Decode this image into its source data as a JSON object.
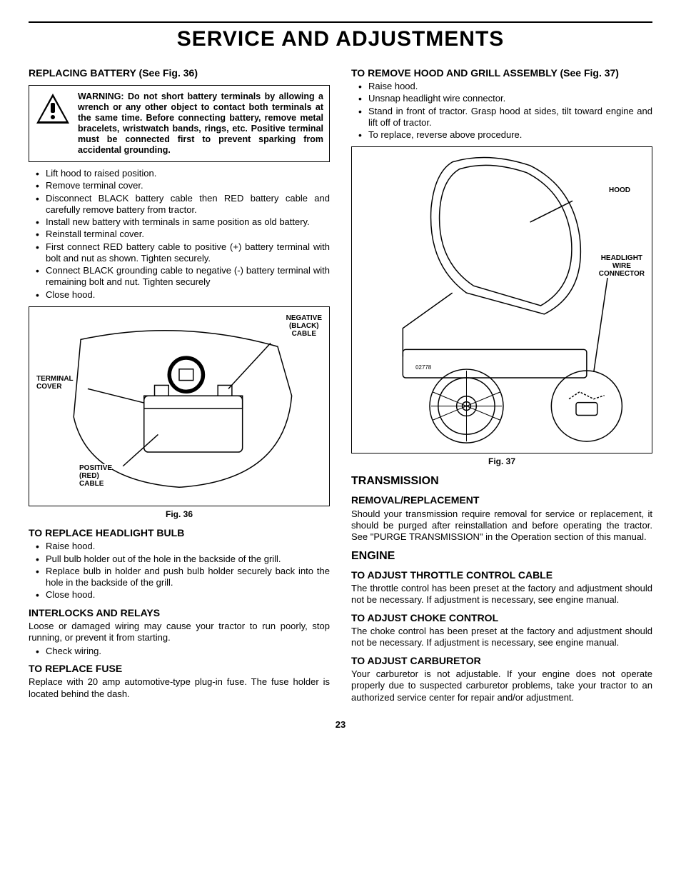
{
  "page_title": "SERVICE AND ADJUSTMENTS",
  "page_number": "23",
  "left": {
    "replacing_battery": {
      "heading": "REPLACING BATTERY (See Fig. 36)",
      "warning": "WARNING:  Do not short battery terminals by allowing a wrench or any other object to contact both terminals at the same time. Before connecting battery, remove metal bracelets, wristwatch bands, rings, etc.  Positive terminal must be connected first to prevent sparking from accidental grounding.",
      "steps": [
        "Lift hood to raised position.",
        "Remove terminal cover.",
        "Disconnect BLACK battery cable then RED battery cable and carefully remove battery from tractor.",
        "Install new battery with terminals in same position as old battery.",
        "Reinstall terminal cover.",
        "First connect RED battery cable to positive (+) battery terminal with bolt and nut as shown. Tighten securely.",
        "Connect BLACK grounding cable to negative (-) battery terminal with remaining bolt and nut. Tighten securely",
        "Close hood."
      ],
      "fig_caption": "Fig. 36",
      "fig_labels": {
        "negative": "NEGATIVE\n(BLACK)\nCABLE",
        "terminal": "TERMINAL\nCOVER",
        "positive": "POSITIVE\n(RED)\nCABLE"
      }
    },
    "headlight": {
      "heading": "TO REPLACE HEADLIGHT BULB",
      "steps": [
        "Raise hood.",
        "Pull bulb holder out of the hole in the backside of the grill.",
        "Replace bulb in holder and push bulb holder securely back into the hole in the backside of the grill.",
        "Close hood."
      ]
    },
    "interlocks": {
      "heading": "INTERLOCKS AND RELAYS",
      "body": "Loose or damaged wiring may cause your tractor to run poorly, stop running, or prevent it from starting.",
      "steps": [
        "Check wiring."
      ]
    },
    "fuse": {
      "heading": "TO REPLACE FUSE",
      "body": "Replace with 20 amp automotive-type plug-in fuse.  The fuse holder is located behind the dash."
    }
  },
  "right": {
    "hood": {
      "heading": "TO REMOVE HOOD AND GRILL ASSEMBLY (See Fig. 37)",
      "steps": [
        "Raise hood.",
        "Unsnap headlight wire connector.",
        "Stand in front of tractor.  Grasp hood at sides, tilt toward engine and lift off of tractor.",
        "To replace, reverse above procedure."
      ],
      "fig_caption": "Fig. 37",
      "fig_labels": {
        "hood": "HOOD",
        "connector": "HEADLIGHT\nWIRE\nCONNECTOR",
        "partno": "02778"
      }
    },
    "transmission": {
      "heading": "TRANSMISSION",
      "sub_heading": "REMOVAL/REPLACEMENT",
      "body": "Should your transmission require removal for service or replacement, it should be purged after reinstallation and before operating the tractor.  See \"PURGE TRANSMISSION\" in the Operation section of this manual."
    },
    "engine": {
      "heading": "ENGINE",
      "throttle": {
        "heading": "TO ADJUST THROTTLE CONTROL CABLE",
        "body": "The throttle control has been preset at the factory and adjustment should not be necessary. If adjustment is necessary, see engine manual."
      },
      "choke": {
        "heading": "TO ADJUST CHOKE CONTROL",
        "body": "The choke control has been preset at the factory and adjustment should not be necessary. If adjustment is necessary, see engine manual."
      },
      "carb": {
        "heading": "TO ADJUST CARBURETOR",
        "body": "Your carburetor is not adjustable. If your engine does not operate properly due to suspected carburetor problems, take your tractor to an authorized service center for repair and/or adjustment."
      }
    }
  }
}
